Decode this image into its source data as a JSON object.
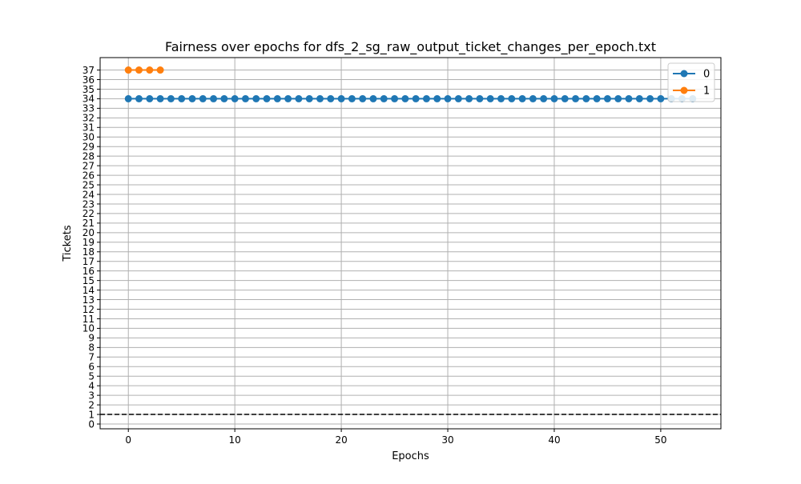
{
  "chart_data": {
    "type": "line",
    "title": "Fairness over epochs for dfs_2_sg_raw_output_ticket_changes_per_epoch.txt",
    "xlabel": "Epochs",
    "ylabel": "Tickets",
    "xlim": [
      -2.65,
      55.65
    ],
    "ylim": [
      -0.5,
      38.3
    ],
    "xticks": [
      0,
      10,
      20,
      30,
      40,
      50
    ],
    "yticks": [
      0,
      1,
      2,
      3,
      4,
      5,
      6,
      7,
      8,
      9,
      10,
      11,
      12,
      13,
      14,
      15,
      16,
      17,
      18,
      19,
      20,
      21,
      22,
      23,
      24,
      25,
      26,
      27,
      28,
      29,
      30,
      31,
      32,
      33,
      34,
      35,
      36,
      37
    ],
    "grid": true,
    "legend_position": "top-right",
    "reference_line": {
      "y": 1,
      "style": "dashed",
      "color": "#000000"
    },
    "series": [
      {
        "name": "0",
        "color": "#1f77b4",
        "x": [
          0,
          1,
          2,
          3,
          4,
          5,
          6,
          7,
          8,
          9,
          10,
          11,
          12,
          13,
          14,
          15,
          16,
          17,
          18,
          19,
          20,
          21,
          22,
          23,
          24,
          25,
          26,
          27,
          28,
          29,
          30,
          31,
          32,
          33,
          34,
          35,
          36,
          37,
          38,
          39,
          40,
          41,
          42,
          43,
          44,
          45,
          46,
          47,
          48,
          49,
          50,
          51,
          52,
          53
        ],
        "y": [
          34,
          34,
          34,
          34,
          34,
          34,
          34,
          34,
          34,
          34,
          34,
          34,
          34,
          34,
          34,
          34,
          34,
          34,
          34,
          34,
          34,
          34,
          34,
          34,
          34,
          34,
          34,
          34,
          34,
          34,
          34,
          34,
          34,
          34,
          34,
          34,
          34,
          34,
          34,
          34,
          34,
          34,
          34,
          34,
          34,
          34,
          34,
          34,
          34,
          34,
          34,
          34,
          34,
          34
        ]
      },
      {
        "name": "1",
        "color": "#ff7f0e",
        "x": [
          0,
          1,
          2,
          3
        ],
        "y": [
          37,
          37,
          37,
          37
        ]
      }
    ]
  }
}
